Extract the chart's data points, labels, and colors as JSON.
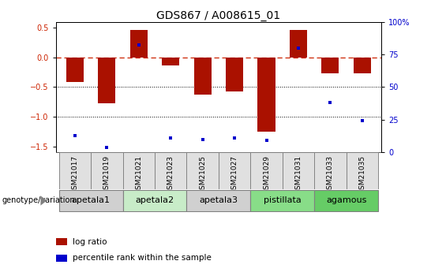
{
  "title": "GDS867 / A008615_01",
  "samples": [
    "GSM21017",
    "GSM21019",
    "GSM21021",
    "GSM21023",
    "GSM21025",
    "GSM21027",
    "GSM21029",
    "GSM21031",
    "GSM21033",
    "GSM21035"
  ],
  "log_ratios": [
    -0.42,
    -0.78,
    0.46,
    -0.13,
    -0.63,
    -0.57,
    -1.25,
    0.46,
    -0.27,
    -0.27
  ],
  "percentile_ranks": [
    13,
    4,
    82,
    11,
    10,
    11,
    9,
    80,
    38,
    24
  ],
  "groups": [
    {
      "name": "apetala1",
      "samples": [
        0,
        1
      ],
      "color": "#d0d0d0"
    },
    {
      "name": "apetala2",
      "samples": [
        2,
        3
      ],
      "color": "#c8ecc8"
    },
    {
      "name": "apetala3",
      "samples": [
        4,
        5
      ],
      "color": "#d0d0d0"
    },
    {
      "name": "pistillata",
      "samples": [
        6,
        7
      ],
      "color": "#88dd88"
    },
    {
      "name": "agamous",
      "samples": [
        8,
        9
      ],
      "color": "#66cc66"
    }
  ],
  "ylim_left": [
    -1.6,
    0.6
  ],
  "ylim_right": [
    0,
    100
  ],
  "bar_color": "#aa1100",
  "dot_color": "#0000cc",
  "hline_color": "#cc2200",
  "grid_color": "#000000",
  "title_fontsize": 10,
  "tick_fontsize": 7,
  "label_fontsize": 6.5,
  "group_fontsize": 8,
  "legend_label_ratio": "log ratio",
  "legend_label_pct": "percentile rank within the sample",
  "left_axis_ticks": [
    0.5,
    0.0,
    -0.5,
    -1.0,
    -1.5
  ],
  "right_axis_ticks": [
    100,
    75,
    50,
    25,
    0
  ],
  "genotype_label": "genotype/variation"
}
